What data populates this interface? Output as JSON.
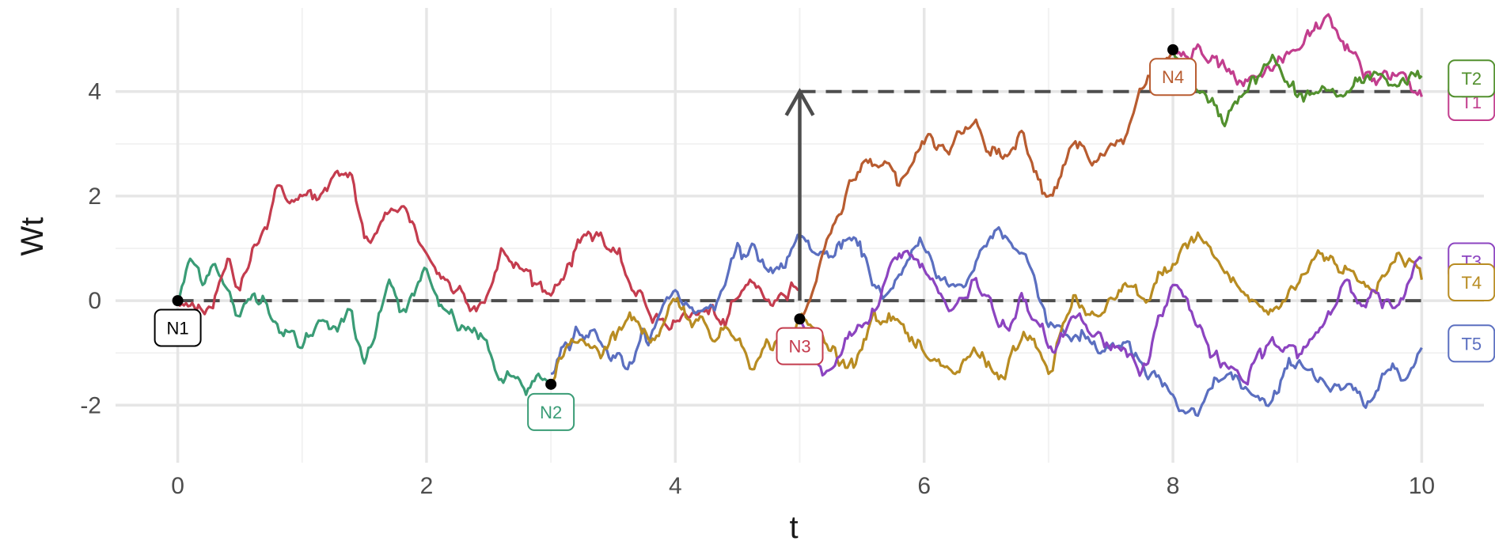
{
  "chart_data": {
    "type": "line",
    "title": "",
    "xlabel": "t",
    "ylabel": "Wt",
    "xlim": [
      -0.5,
      10.5
    ],
    "ylim": [
      -3.1,
      5.6
    ],
    "x_ticks": [
      0,
      2,
      4,
      6,
      8,
      10
    ],
    "x_tick_labels": [
      "0",
      "2",
      "4",
      "6",
      "8",
      "10"
    ],
    "y_ticks": [
      -2,
      0,
      2,
      4
    ],
    "y_tick_labels": [
      "-2",
      "0",
      "2",
      "4"
    ],
    "grid": true,
    "reference_lines": [
      {
        "y": 0,
        "x": [
          0,
          10
        ],
        "style": "dashed",
        "color": "#4d4d4d"
      },
      {
        "y": 4,
        "x": [
          5,
          10
        ],
        "style": "dashed",
        "color": "#4d4d4d"
      }
    ],
    "arrow": {
      "x": 5,
      "from_y": 0,
      "to_y": 4,
      "color": "#4d4d4d"
    },
    "series": [
      {
        "color": "#3a9c76",
        "x": [
          0,
          0.1,
          0.2,
          0.3,
          0.5,
          0.7,
          0.9,
          1.0,
          1.2,
          1.4,
          1.5,
          1.6,
          1.7,
          1.8,
          1.9,
          2.0,
          2.1,
          2.3,
          2.4,
          2.6,
          2.8,
          2.9,
          3.0
        ],
        "y": [
          0,
          0.8,
          0.3,
          0.7,
          -0.3,
          0.0,
          -0.6,
          -0.9,
          -0.4,
          -0.2,
          -1.2,
          -0.5,
          0.4,
          -0.2,
          0.1,
          0.6,
          -0.1,
          -0.5,
          -0.6,
          -1.5,
          -1.8,
          -1.4,
          -1.6
        ]
      },
      {
        "color": "#c43c4e",
        "x": [
          0,
          0.2,
          0.4,
          0.5,
          0.6,
          0.8,
          1.0,
          1.2,
          1.4,
          1.5,
          1.6,
          1.8,
          2.0,
          2.2,
          2.4,
          2.6,
          2.8,
          3.0,
          3.2,
          3.4,
          3.6,
          3.8,
          4.0,
          4.2,
          4.4,
          4.6,
          4.8,
          5.0
        ],
        "y": [
          0,
          -0.2,
          0.8,
          0.2,
          1.0,
          2.2,
          2.0,
          2.1,
          2.4,
          1.2,
          1.3,
          1.8,
          0.9,
          0.2,
          -0.2,
          1.0,
          0.6,
          0.1,
          1.0,
          1.3,
          0.5,
          -0.3,
          -0.4,
          -0.2,
          -0.5,
          0.4,
          0.0,
          0.2
        ]
      },
      {
        "color": "#5b6fc0",
        "x": [
          3.0,
          3.2,
          3.4,
          3.6,
          3.8,
          4.0,
          4.2,
          4.4,
          4.5,
          4.6,
          4.8,
          5.0,
          5.2,
          5.4,
          5.6,
          5.8,
          6.0,
          6.3,
          6.6,
          6.8,
          7.0,
          7.2,
          7.4,
          7.6,
          7.8,
          8.0,
          8.2,
          8.4,
          8.6,
          8.8,
          9.0,
          9.2,
          9.4,
          9.6,
          9.8,
          10.0
        ],
        "y": [
          -1.4,
          -0.5,
          -0.8,
          -1.3,
          -0.7,
          0.2,
          -0.2,
          0.3,
          1.1,
          1.0,
          0.6,
          1.2,
          0.9,
          1.2,
          0.3,
          0.5,
          1.0,
          0.3,
          1.4,
          0.9,
          -0.5,
          -0.7,
          -1.0,
          -0.8,
          -1.5,
          -1.8,
          -2.2,
          -1.5,
          -1.7,
          -1.9,
          -1.2,
          -1.5,
          -1.6,
          -1.9,
          -1.3,
          -0.9
        ]
      },
      {
        "color": "#b88c22",
        "x": [
          3.0,
          3.2,
          3.4,
          3.6,
          3.8,
          4.0,
          4.2,
          4.4,
          4.6,
          4.8,
          5.0,
          5.2,
          5.4,
          5.6,
          5.8,
          6.0,
          6.2,
          6.4,
          6.6,
          6.8,
          7.0,
          7.2,
          7.4,
          7.6,
          7.8,
          8.0,
          8.2,
          8.4,
          8.6,
          8.8,
          9.0,
          9.2,
          9.4,
          9.6,
          9.8,
          10.0
        ],
        "y": [
          -1.6,
          -0.8,
          -1.1,
          -0.4,
          -0.8,
          0.0,
          -0.3,
          -0.5,
          -1.3,
          -0.8,
          -0.3,
          -0.8,
          -1.2,
          -0.2,
          -0.4,
          -1.0,
          -1.3,
          -0.9,
          -1.5,
          -0.6,
          -1.4,
          0.1,
          -0.3,
          0.3,
          0.0,
          0.7,
          1.3,
          0.6,
          0.1,
          -0.2,
          0.3,
          0.9,
          0.6,
          0.2,
          0.9,
          0.4
        ]
      },
      {
        "color": "#b85c30",
        "x": [
          5.0,
          5.2,
          5.4,
          5.6,
          5.8,
          6.0,
          6.2,
          6.4,
          6.6,
          6.8,
          7.0,
          7.2,
          7.4,
          7.6,
          7.8,
          8.0
        ],
        "y": [
          -0.4,
          1.0,
          2.3,
          2.6,
          2.2,
          3.0,
          2.8,
          3.4,
          2.9,
          3.2,
          2.0,
          3.0,
          2.7,
          3.0,
          4.3,
          4.8
        ]
      },
      {
        "color": "#c23e8e",
        "x": [
          8.0,
          8.2,
          8.4,
          8.6,
          8.8,
          9.0,
          9.2,
          9.4,
          9.6,
          9.8,
          10.0
        ],
        "y": [
          4.8,
          4.9,
          4.6,
          4.2,
          4.4,
          4.8,
          5.3,
          4.9,
          4.2,
          4.3,
          3.9
        ]
      },
      {
        "color": "#52902e",
        "x": [
          8.0,
          8.2,
          8.4,
          8.6,
          8.8,
          9.0,
          9.2,
          9.4,
          9.6,
          9.8,
          10.0
        ],
        "y": [
          4.8,
          4.0,
          3.4,
          4.0,
          4.7,
          3.9,
          4.1,
          4.0,
          4.3,
          4.1,
          4.3
        ]
      },
      {
        "color": "#8c44c0",
        "x": [
          5.0,
          5.2,
          5.4,
          5.6,
          5.8,
          6.0,
          6.2,
          6.4,
          6.6,
          6.8,
          7.0,
          7.2,
          7.4,
          7.6,
          7.8,
          8.0,
          8.2,
          8.4,
          8.6,
          8.8,
          9.0,
          9.2,
          9.4,
          9.6,
          9.8,
          10.0
        ],
        "y": [
          -0.4,
          -1.4,
          -0.6,
          -0.2,
          0.9,
          0.6,
          -0.2,
          0.4,
          -0.5,
          0.0,
          -0.9,
          -0.3,
          -0.6,
          -0.9,
          -1.2,
          0.3,
          -0.5,
          -1.2,
          -1.6,
          -0.7,
          -1.1,
          -0.5,
          0.4,
          0.2,
          -0.1,
          0.8
        ]
      }
    ],
    "node_points": [
      {
        "x": 0,
        "y": 0
      },
      {
        "x": 3,
        "y": -1.6
      },
      {
        "x": 5,
        "y": -0.35
      },
      {
        "x": 8,
        "y": 4.8
      }
    ],
    "labels": [
      {
        "text": "N1",
        "x": 0,
        "y": -0.52,
        "color": "#000000"
      },
      {
        "text": "N2",
        "x": 3,
        "y": -2.13,
        "color": "#3a9c76"
      },
      {
        "text": "N3",
        "x": 5,
        "y": -0.87,
        "color": "#c43c4e"
      },
      {
        "text": "N4",
        "x": 8,
        "y": 4.28,
        "color": "#b85c30"
      },
      {
        "text": "T1",
        "x": 10.4,
        "y": 3.8,
        "color": "#c23e8e"
      },
      {
        "text": "T2",
        "x": 10.4,
        "y": 4.25,
        "color": "#52902e"
      },
      {
        "text": "T3",
        "x": 10.4,
        "y": 0.75,
        "color": "#8c44c0"
      },
      {
        "text": "T4",
        "x": 10.4,
        "y": 0.35,
        "color": "#b88c22"
      },
      {
        "text": "T5",
        "x": 10.4,
        "y": -0.82,
        "color": "#5b6fc0"
      }
    ]
  }
}
